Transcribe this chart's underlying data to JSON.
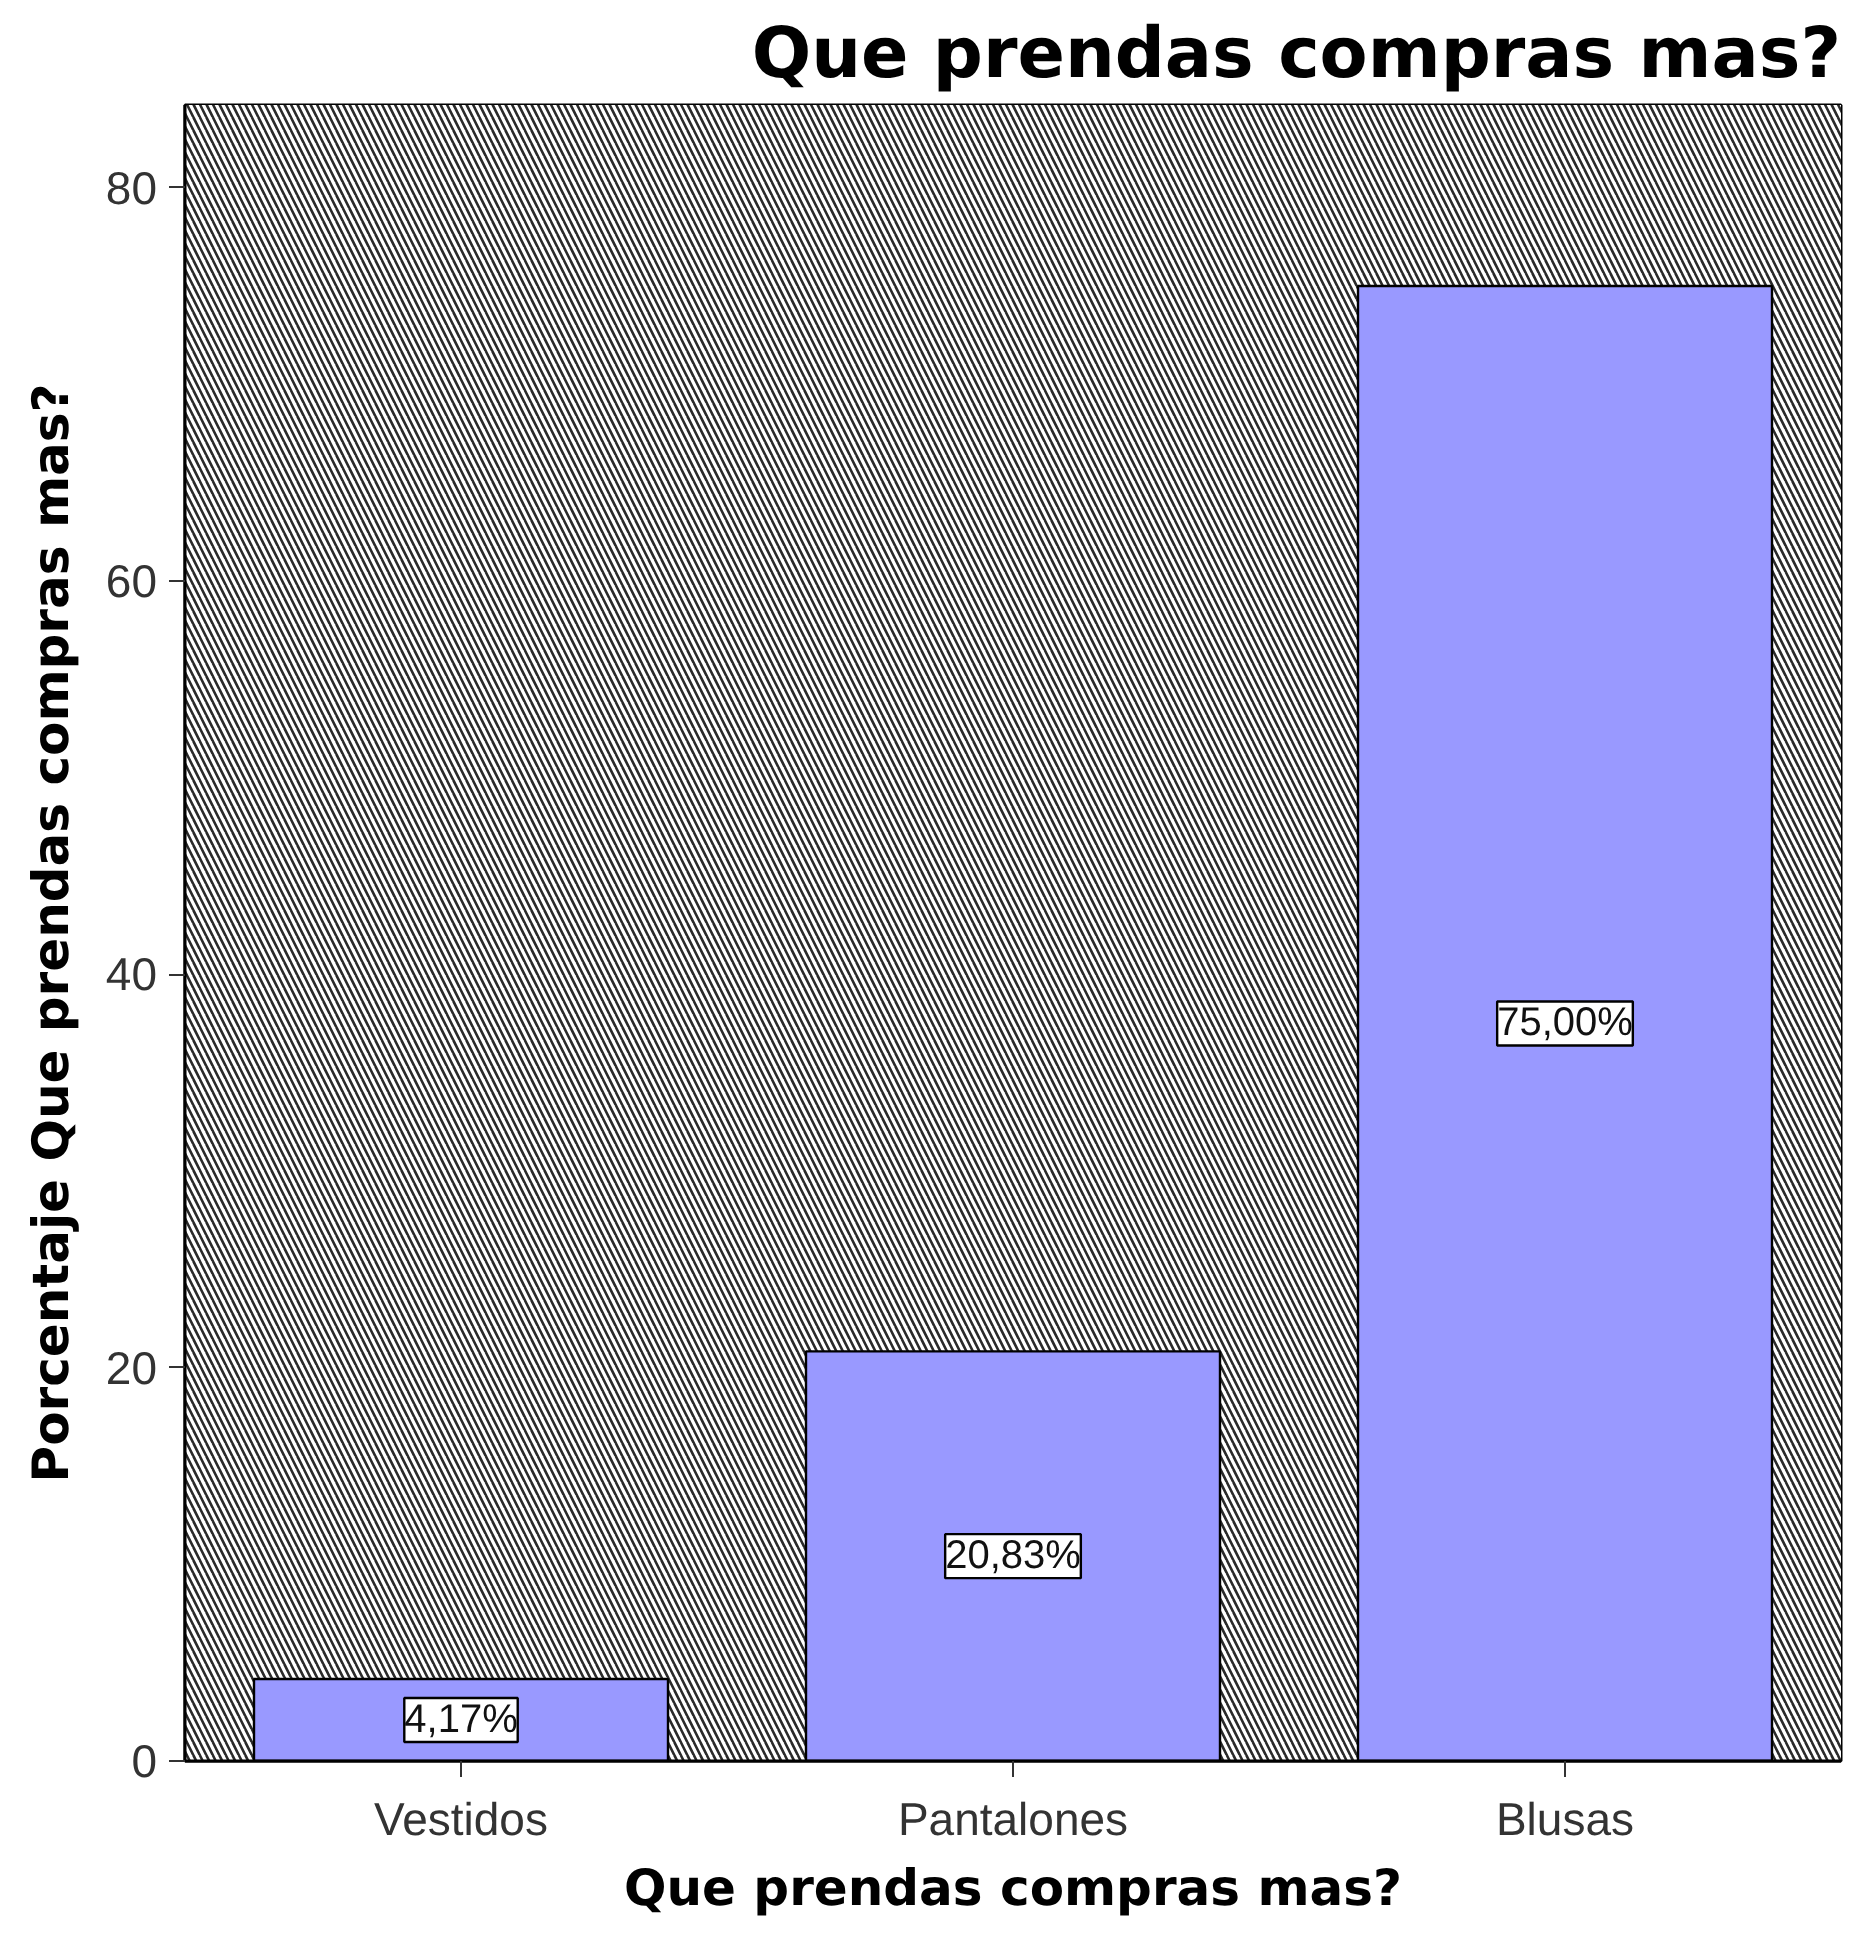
{
  "chart_data": {
    "type": "bar",
    "title": "Que prendas compras mas?",
    "xlabel": "Que prendas compras mas?",
    "ylabel": "Porcentaje Que prendas compras mas?",
    "categories": [
      "Vestidos",
      "Pantalones",
      "Blusas"
    ],
    "values": [
      4.17,
      20.83,
      75.0
    ],
    "value_labels": [
      "4,17%",
      "20,83%",
      "75,00%"
    ],
    "color": "#9999ff",
    "ylim": [
      0,
      84.2
    ],
    "yticks": [
      0,
      20,
      40,
      60,
      80
    ]
  }
}
